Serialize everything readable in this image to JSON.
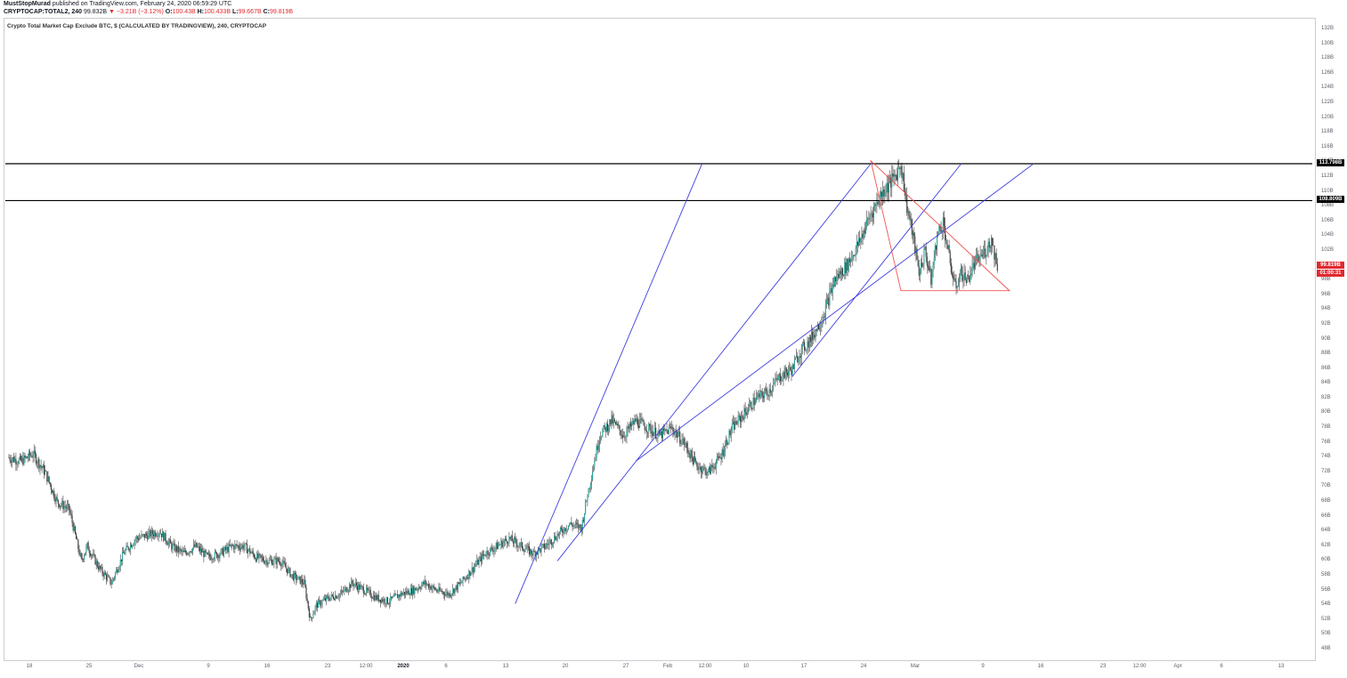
{
  "header": {
    "author": "MustStopMurad",
    "published_text": "published on TradingView.com, February 24, 2020 06:59:29 UTC",
    "symbol": "CRYPTOCAP:TOTAL2, 240",
    "last": "99.832B",
    "change": "▼ −3.21B (−3.12%)",
    "open_label": "O:",
    "open": "100.43B",
    "high_label": "H:",
    "high": "100.433B",
    "low_label": "L:",
    "low": "99.667B",
    "close_label": "C:",
    "close": "99.819B"
  },
  "chart_data": {
    "type": "candlestick",
    "title": "Crypto Total Market Cap Exclude BTC, $ (CALCULATED BY TRADINGVIEW), 240, CRYPTOCAP",
    "xlabel": "",
    "ylabel": "",
    "ylim": [
      46,
      134
    ],
    "y_ticks": [
      "132B",
      "130B",
      "128B",
      "126B",
      "124B",
      "122B",
      "120B",
      "118B",
      "116B",
      "114B",
      "112B",
      "110B",
      "108B",
      "106B",
      "104B",
      "102B",
      "100B",
      "98B",
      "96B",
      "94B",
      "92B",
      "90B",
      "88B",
      "86B",
      "84B",
      "82B",
      "80B",
      "78B",
      "76B",
      "74B",
      "72B",
      "70B",
      "68B",
      "66B",
      "64B",
      "62B",
      "60B",
      "58B",
      "56B",
      "54B",
      "52B",
      "50B",
      "48B"
    ],
    "x_ticks": [
      "18",
      "25",
      "Dec",
      "9",
      "16",
      "23",
      "12:00",
      "2020",
      "6",
      "13",
      "20",
      "27",
      "Feb",
      "12:00",
      "10",
      "17",
      "24",
      "Mar",
      "9",
      "16",
      "23",
      "12:00",
      "Apr",
      "6",
      "13"
    ],
    "x_range_days": [
      0,
      148
    ],
    "price_path": [
      [
        0,
        74
      ],
      [
        2,
        73.5
      ],
      [
        4,
        74.5
      ],
      [
        6,
        72
      ],
      [
        8,
        68
      ],
      [
        10,
        67
      ],
      [
        12,
        60
      ],
      [
        13,
        62
      ],
      [
        15,
        59
      ],
      [
        17,
        57
      ],
      [
        19,
        61
      ],
      [
        21,
        63
      ],
      [
        23,
        63.5
      ],
      [
        25,
        64
      ],
      [
        27,
        62
      ],
      [
        29,
        61
      ],
      [
        31,
        62
      ],
      [
        33,
        60.5
      ],
      [
        35,
        61
      ],
      [
        37,
        62
      ],
      [
        39,
        62
      ],
      [
        41,
        60.5
      ],
      [
        43,
        60
      ],
      [
        45,
        60
      ],
      [
        47,
        58
      ],
      [
        49,
        57
      ],
      [
        50,
        52
      ],
      [
        51,
        54
      ],
      [
        53,
        55
      ],
      [
        55,
        55.5
      ],
      [
        57,
        57
      ],
      [
        59,
        56
      ],
      [
        61,
        55
      ],
      [
        63,
        54.5
      ],
      [
        65,
        55.5
      ],
      [
        67,
        56
      ],
      [
        69,
        57
      ],
      [
        71,
        56
      ],
      [
        73,
        55.5
      ],
      [
        75,
        57
      ],
      [
        77,
        59
      ],
      [
        79,
        61
      ],
      [
        81,
        62
      ],
      [
        83,
        63
      ],
      [
        85,
        62
      ],
      [
        87,
        61
      ],
      [
        89,
        62
      ],
      [
        91,
        63.5
      ],
      [
        93,
        65
      ],
      [
        95,
        64.5
      ],
      [
        96,
        69
      ],
      [
        97,
        73
      ],
      [
        98,
        77
      ],
      [
        100,
        79
      ],
      [
        102,
        77
      ],
      [
        104,
        79
      ],
      [
        106,
        78
      ],
      [
        108,
        77
      ],
      [
        110,
        78
      ],
      [
        112,
        76
      ],
      [
        114,
        73
      ],
      [
        116,
        72
      ],
      [
        118,
        74
      ],
      [
        120,
        78
      ],
      [
        122,
        80
      ],
      [
        124,
        82
      ],
      [
        126,
        83
      ],
      [
        128,
        85
      ],
      [
        130,
        86
      ],
      [
        131,
        88
      ],
      [
        133,
        90
      ],
      [
        135,
        93
      ],
      [
        137,
        98
      ],
      [
        139,
        100
      ],
      [
        141,
        103
      ],
      [
        143,
        107
      ],
      [
        145,
        110
      ],
      [
        147,
        112
      ],
      [
        148,
        113.8
      ],
      [
        149,
        108
      ],
      [
        150,
        104
      ],
      [
        151,
        99
      ],
      [
        152,
        102
      ],
      [
        153,
        98
      ],
      [
        154,
        104
      ],
      [
        155,
        106
      ],
      [
        156,
        101
      ],
      [
        157,
        97
      ],
      [
        158,
        99
      ],
      [
        159,
        98
      ],
      [
        160,
        100
      ],
      [
        161,
        101
      ],
      [
        162,
        102
      ],
      [
        163,
        103.5
      ],
      [
        164,
        100
      ]
    ],
    "horizontal_levels": [
      {
        "value": 113.798,
        "label": "113.798B"
      },
      {
        "value": 108.809,
        "label": "108.809B"
      }
    ],
    "current_price": {
      "label": "99.819B",
      "countdown": "01:00:31",
      "value": 99.819
    },
    "blue_trendlines": [
      {
        "from": [
          84,
          54.2
        ],
        "to": [
          115,
          113.8
        ]
      },
      {
        "from": [
          91,
          60
        ],
        "to": [
          143,
          113.8
        ]
      },
      {
        "from": [
          104,
          73.5
        ],
        "to": [
          170,
          113.8
        ]
      },
      {
        "from": [
          130,
          85
        ],
        "to": [
          158,
          113.8
        ]
      }
    ],
    "red_triangle": [
      [
        143,
        114.2
      ],
      [
        166,
        96.6
      ],
      [
        148,
        96.6
      ]
    ],
    "colors": {
      "up": "#26a69a",
      "down": "#ef5350",
      "candle_body": "#3a3a3a",
      "trendline": "#3f3fe0",
      "triangle": "#ef5350",
      "level": "#000000",
      "price_badge": "#e0292f"
    }
  }
}
